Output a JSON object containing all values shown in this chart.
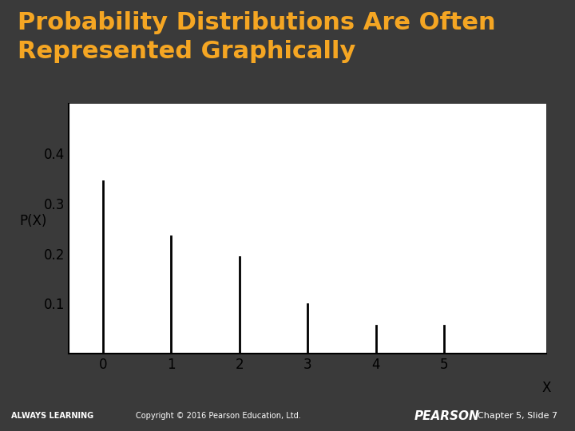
{
  "title": "Probability Distributions Are Often\nRepresented Graphically",
  "title_color": "#F5A623",
  "title_fontsize": 22,
  "background_color": "#3a3a3a",
  "chart_background": "#ffffff",
  "x_values": [
    0,
    1,
    2,
    3,
    4,
    5
  ],
  "y_values": [
    0.344,
    0.234,
    0.193,
    0.098,
    0.056,
    0.056
  ],
  "ylabel": "P(X)",
  "xlabel": "X",
  "ylim": [
    0,
    0.5
  ],
  "yticks": [
    0.1,
    0.2,
    0.3,
    0.4
  ],
  "ytick_labels": [
    "0.1",
    "0.2",
    "0.3",
    "0.4"
  ],
  "xticks": [
    0,
    1,
    2,
    3,
    4,
    5
  ],
  "bar_color": "#000000",
  "line_width": 2.0,
  "footer_color": "#F5A623",
  "footer_text_left": "ALWAYS LEARNING",
  "footer_text_center": "Copyright © 2016 Pearson Education, Ltd.",
  "footer_text_right": "Chapter 5, Slide 7",
  "footer_brand": "PEARSON"
}
